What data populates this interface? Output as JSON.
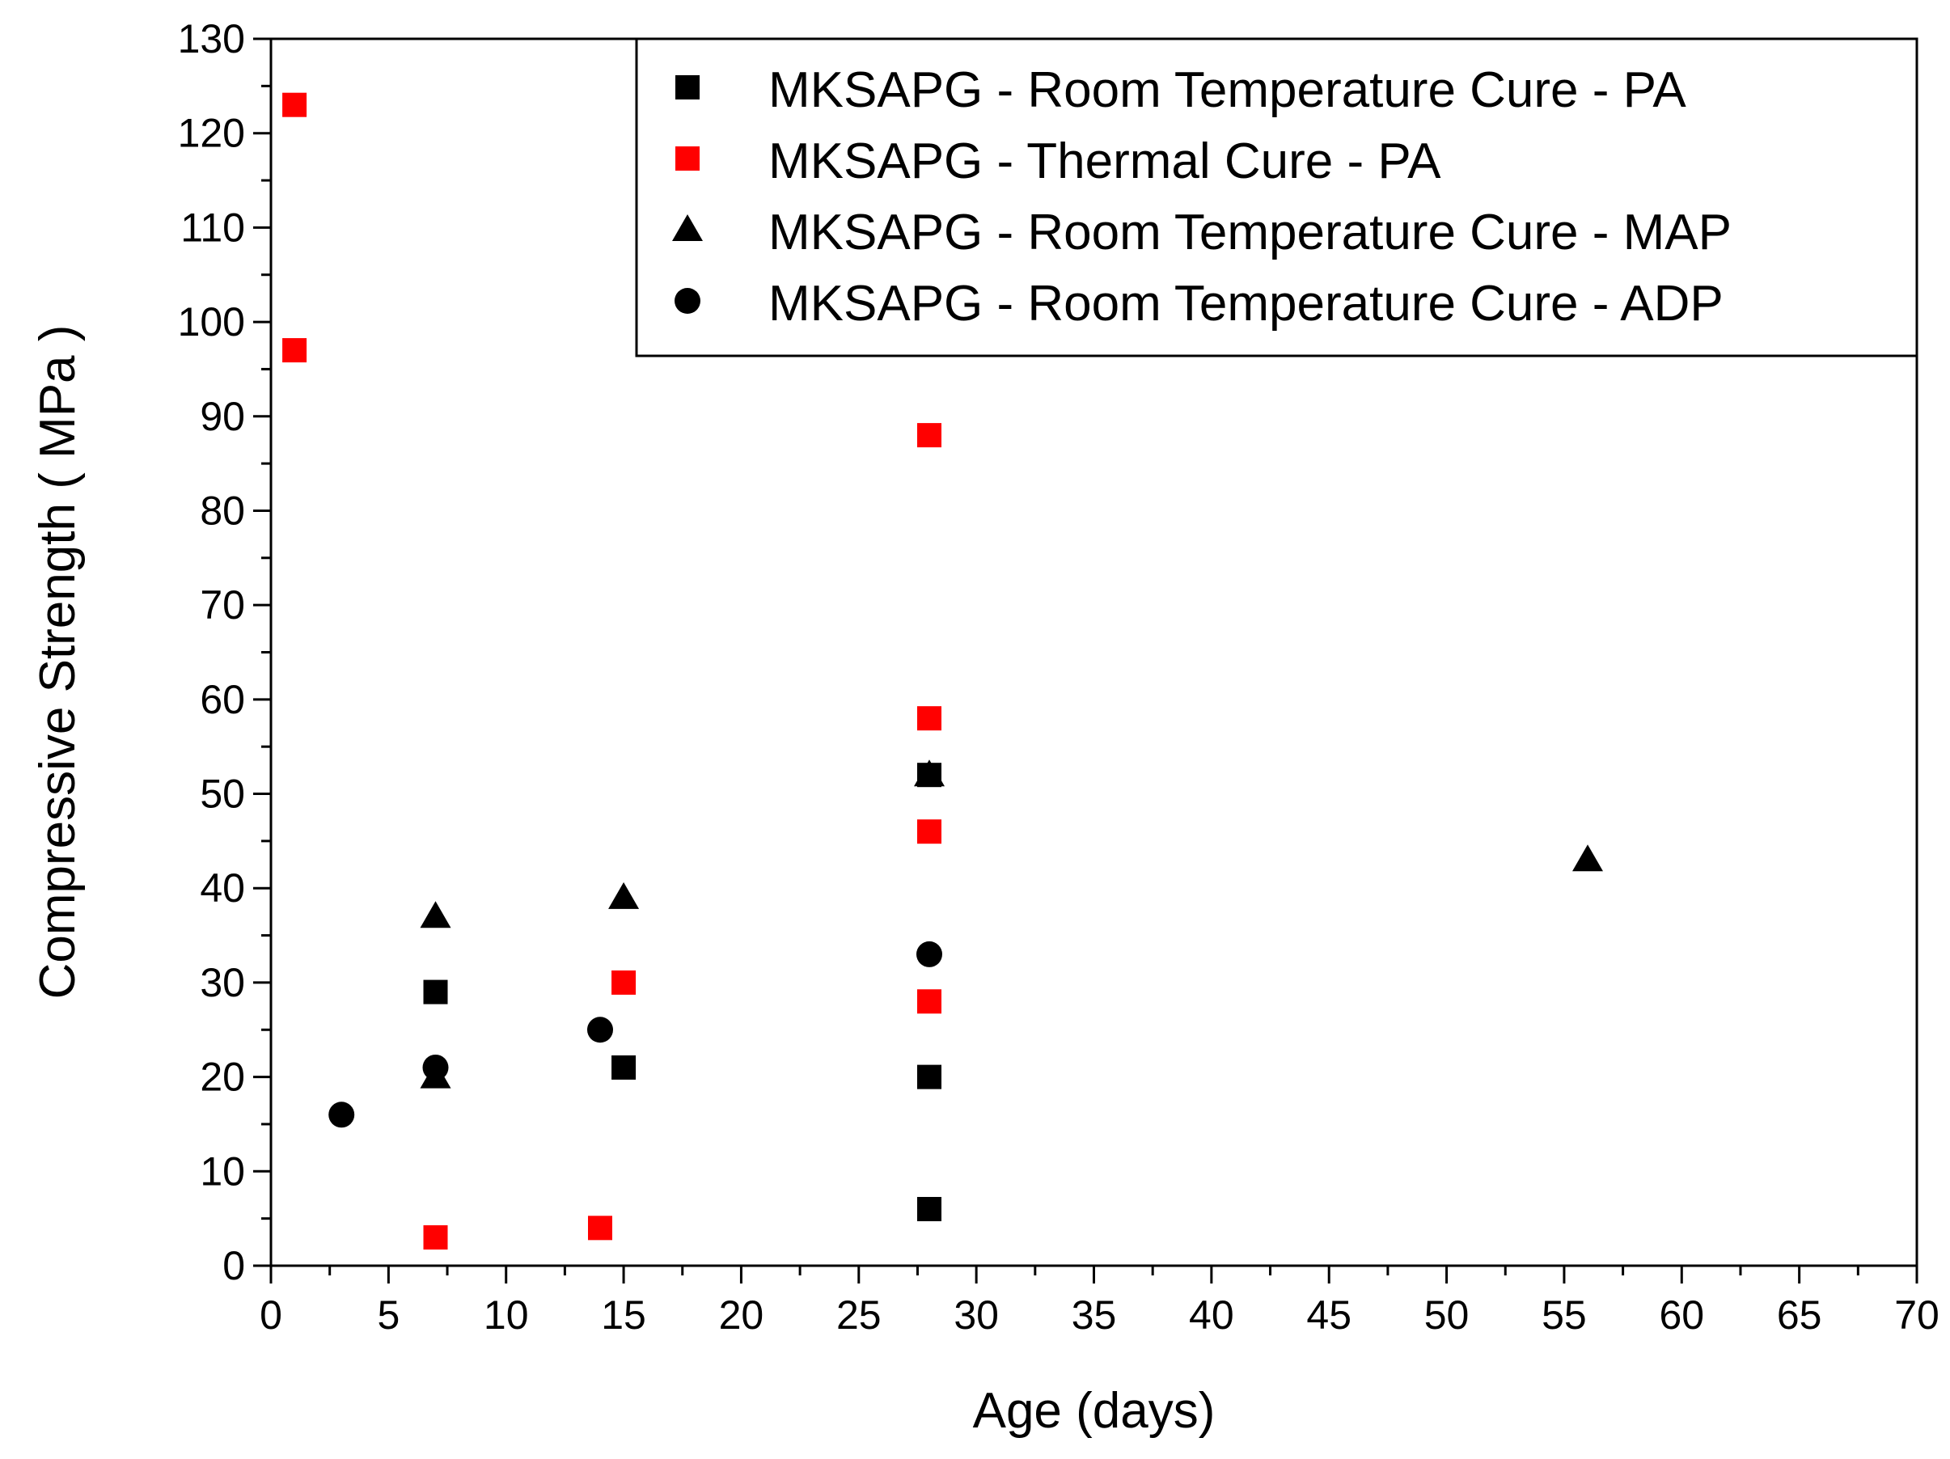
{
  "chart_data": {
    "type": "scatter",
    "title": "",
    "xlabel": "Age (days)",
    "ylabel": "Compressive Strength ( MPa )",
    "xlim": [
      0,
      70
    ],
    "ylim": [
      0,
      130
    ],
    "x_major_ticks": [
      0,
      5,
      10,
      15,
      20,
      25,
      30,
      35,
      40,
      45,
      50,
      55,
      60,
      65,
      70
    ],
    "y_major_ticks": [
      0,
      10,
      20,
      30,
      40,
      50,
      60,
      70,
      80,
      90,
      100,
      110,
      120,
      130
    ],
    "x_tick_labels": [
      "0",
      "5",
      "10",
      "15",
      "20",
      "25",
      "30",
      "35",
      "40",
      "45",
      "50",
      "55",
      "60",
      "65",
      "70"
    ],
    "y_tick_labels": [
      "0",
      "10",
      "20",
      "30",
      "40",
      "50",
      "60",
      "70",
      "80",
      "90",
      "100",
      "110",
      "120",
      "130"
    ],
    "grid": false,
    "legend_position": "top-right",
    "series": [
      {
        "name": "MKSAPG - Room Temperature Cure - PA",
        "marker": "square",
        "color": "#000000",
        "points": [
          [
            7,
            29
          ],
          [
            15,
            21
          ],
          [
            28,
            20
          ],
          [
            28,
            6
          ],
          [
            28,
            52
          ]
        ]
      },
      {
        "name": "MKSAPG - Thermal Cure - PA",
        "marker": "square",
        "color": "#ff0000",
        "points": [
          [
            1,
            123
          ],
          [
            1,
            97
          ],
          [
            7,
            3
          ],
          [
            14,
            4
          ],
          [
            15,
            30
          ],
          [
            28,
            88
          ],
          [
            28,
            58
          ],
          [
            28,
            46
          ],
          [
            28,
            28
          ]
        ]
      },
      {
        "name": "MKSAPG - Room Temperature Cure - MAP",
        "marker": "triangle",
        "color": "#000000",
        "points": [
          [
            7,
            37
          ],
          [
            7,
            20
          ],
          [
            15,
            39
          ],
          [
            28,
            52
          ],
          [
            56,
            43
          ]
        ]
      },
      {
        "name": "MKSAPG - Room Temperature Cure - ADP",
        "marker": "circle",
        "color": "#000000",
        "points": [
          [
            3,
            16
          ],
          [
            7,
            21
          ],
          [
            14,
            25
          ],
          [
            28,
            33
          ]
        ]
      }
    ]
  }
}
